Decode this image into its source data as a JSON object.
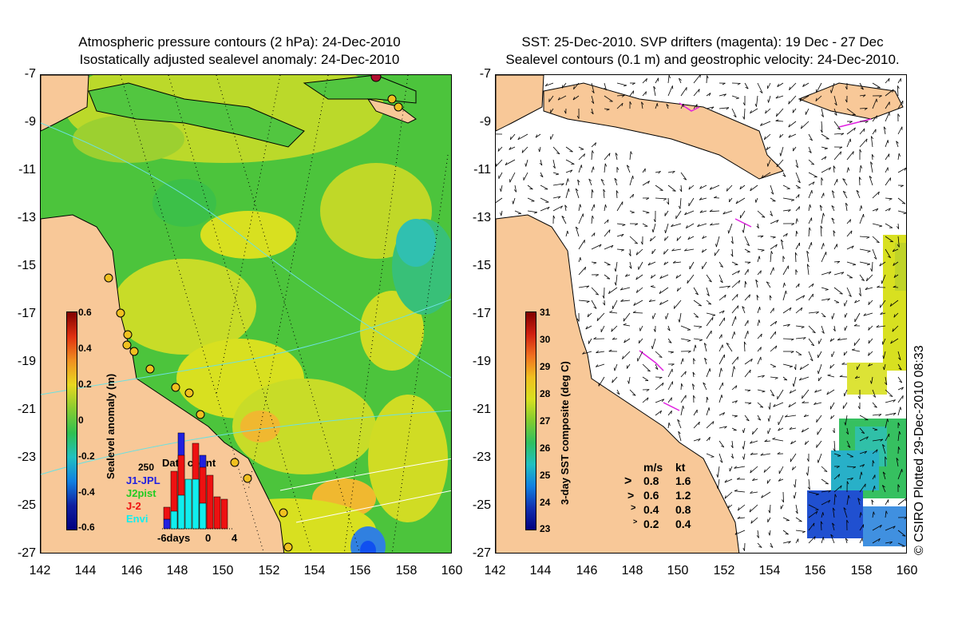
{
  "left_title": {
    "line1": "Atmospheric pressure contours (2 hPa): 24-Dec-2010",
    "line2": "Isostatically adjusted sealevel anomaly: 24-Dec-2010"
  },
  "right_title": {
    "line1": "SST: 25-Dec-2010. SVP drifters (magenta): 19 Dec - 27 Dec",
    "line2": "Sealevel contours (0.1 m) and geostrophic velocity: 24-Dec-2010."
  },
  "y_ticks": [
    "-7",
    "-9",
    "-11",
    "-13",
    "-15",
    "-17",
    "-19",
    "-21",
    "-23",
    "-25",
    "-27"
  ],
  "x_ticks": [
    "142",
    "144",
    "146",
    "148",
    "150",
    "152",
    "154",
    "156",
    "158",
    "160"
  ],
  "left_colorbar": {
    "label": "Sealevel anomaly (m)",
    "ticks": [
      "0.6",
      "0.4",
      "0.2",
      "0",
      "-0.2",
      "-0.4",
      "-0.6"
    ]
  },
  "right_colorbar": {
    "label": "3-day SST composite (deg C)",
    "ticks": [
      "31",
      "30",
      "29",
      "28",
      "27",
      "26",
      "25",
      "24",
      "23"
    ]
  },
  "data_count": {
    "title": "Data count",
    "ymax": "250",
    "missions": [
      {
        "name": "J1-JPL",
        "color": "#2020e0"
      },
      {
        "name": "J2pist",
        "color": "#22cc22"
      },
      {
        "name": "J-2",
        "color": "#ee1111"
      },
      {
        "name": "Envi",
        "color": "#11eeee"
      }
    ],
    "x_labels": [
      "-6days",
      "0",
      "4"
    ]
  },
  "velocity_legend": {
    "header_ms": "m/s",
    "header_kt": "kt",
    "rows": [
      {
        "ms": "0.8",
        "kt": "1.6"
      },
      {
        "ms": "0.6",
        "kt": "1.2"
      },
      {
        "ms": "0.4",
        "kt": "0.8"
      },
      {
        "ms": "0.2",
        "kt": "0.4"
      }
    ]
  },
  "credit": "© CSIRO Plotted 29-Dec-2010 08:33",
  "colors": {
    "land": "#f8c898",
    "ocean_green": "#44cc44",
    "ocean_yellow": "#d8e020",
    "magenta": "#e020e0"
  }
}
